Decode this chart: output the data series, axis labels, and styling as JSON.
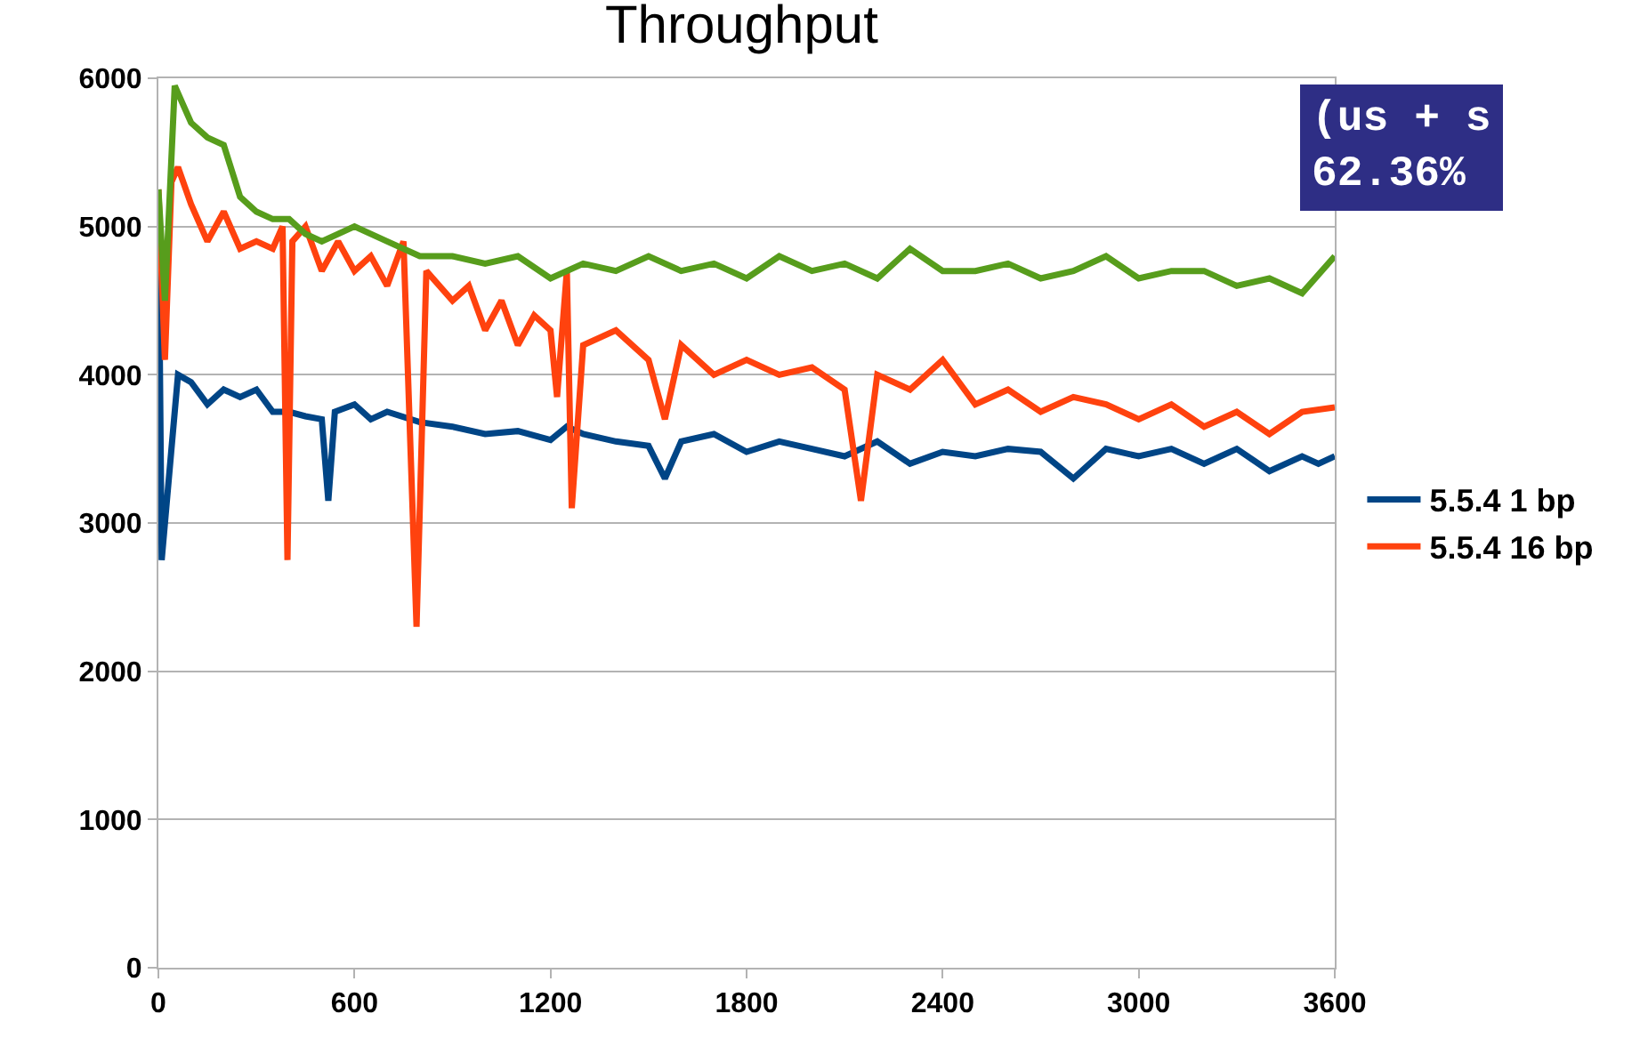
{
  "chart_data": {
    "type": "line",
    "title": "Throughput",
    "xlim": [
      0,
      3600
    ],
    "xticks": [
      0,
      600,
      1200,
      1800,
      2400,
      3000,
      3600
    ],
    "ylim": [
      0,
      6000
    ],
    "yticks": [
      0,
      1000,
      2000,
      3000,
      4000,
      5000,
      6000
    ],
    "grid": "y",
    "legend": "right",
    "marker": "none",
    "line_style": "solid",
    "annotations": [
      "(us + s",
      "62.36%"
    ],
    "series": [
      {
        "name": "5.5.4 1 bp",
        "color": "#004586",
        "x": [
          0,
          10,
          40,
          60,
          100,
          150,
          200,
          250,
          300,
          350,
          400,
          450,
          500,
          520,
          540,
          600,
          650,
          700,
          800,
          900,
          1000,
          1100,
          1200,
          1250,
          1300,
          1400,
          1500,
          1550,
          1600,
          1700,
          1800,
          1900,
          2000,
          2100,
          2200,
          2300,
          2400,
          2500,
          2600,
          2700,
          2800,
          2900,
          3000,
          3100,
          3200,
          3300,
          3400,
          3500,
          3550,
          3600
        ],
        "values": [
          5200,
          2750,
          3500,
          4000,
          3950,
          3800,
          3900,
          3850,
          3900,
          3750,
          3750,
          3720,
          3700,
          3150,
          3750,
          3800,
          3700,
          3750,
          3680,
          3650,
          3600,
          3620,
          3560,
          3650,
          3600,
          3550,
          3520,
          3300,
          3550,
          3600,
          3480,
          3550,
          3500,
          3450,
          3550,
          3400,
          3480,
          3450,
          3500,
          3480,
          3300,
          3500,
          3450,
          3500,
          3400,
          3500,
          3350,
          3450,
          3400,
          3450
        ]
      },
      {
        "name": "5.5.4 16 bp",
        "color": "#ff420e",
        "x": [
          0,
          20,
          40,
          60,
          100,
          150,
          200,
          250,
          300,
          350,
          380,
          395,
          410,
          450,
          500,
          550,
          600,
          650,
          700,
          750,
          790,
          820,
          900,
          950,
          1000,
          1050,
          1100,
          1150,
          1200,
          1220,
          1250,
          1265,
          1300,
          1400,
          1500,
          1550,
          1600,
          1700,
          1800,
          1900,
          2000,
          2100,
          2150,
          2200,
          2300,
          2400,
          2500,
          2600,
          2700,
          2800,
          2900,
          3000,
          3100,
          3200,
          3300,
          3400,
          3500,
          3600
        ],
        "values": [
          5250,
          4100,
          5300,
          5400,
          5150,
          4900,
          5100,
          4850,
          4900,
          4850,
          5000,
          2750,
          4900,
          5000,
          4700,
          4900,
          4700,
          4800,
          4600,
          4900,
          2300,
          4700,
          4500,
          4600,
          4300,
          4500,
          4200,
          4400,
          4300,
          3850,
          4700,
          3100,
          4200,
          4300,
          4100,
          3700,
          4200,
          4000,
          4100,
          4000,
          4050,
          3900,
          3150,
          4000,
          3900,
          4100,
          3800,
          3900,
          3750,
          3850,
          3800,
          3700,
          3800,
          3650,
          3750,
          3600,
          3750,
          3780
        ]
      },
      {
        "color": "#579d1c",
        "x": [
          0,
          20,
          50,
          80,
          100,
          150,
          200,
          250,
          300,
          350,
          400,
          450,
          500,
          600,
          700,
          800,
          900,
          1000,
          1100,
          1200,
          1300,
          1400,
          1500,
          1600,
          1700,
          1800,
          1900,
          2000,
          2100,
          2200,
          2300,
          2400,
          2500,
          2600,
          2700,
          2800,
          2900,
          3000,
          3100,
          3200,
          3300,
          3400,
          3500,
          3600
        ],
        "values": [
          5250,
          4500,
          5950,
          5800,
          5700,
          5600,
          5550,
          5200,
          5100,
          5050,
          5050,
          4950,
          4900,
          5000,
          4900,
          4800,
          4800,
          4750,
          4800,
          4650,
          4750,
          4700,
          4800,
          4700,
          4750,
          4650,
          4800,
          4700,
          4750,
          4650,
          4850,
          4700,
          4700,
          4750,
          4650,
          4700,
          4800,
          4650,
          4700,
          4700,
          4600,
          4650,
          4550,
          4800
        ]
      }
    ]
  }
}
